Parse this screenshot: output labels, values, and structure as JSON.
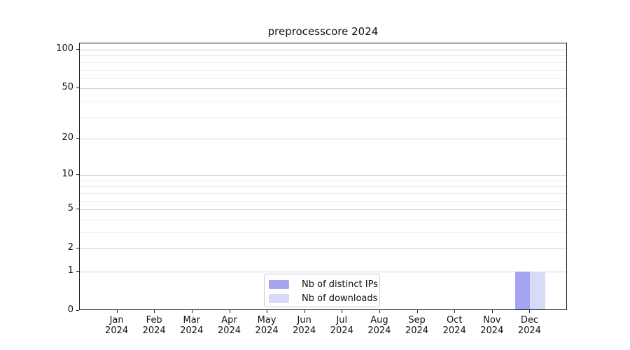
{
  "title": "preprocesscore 2024",
  "chart_data": {
    "type": "bar",
    "title": "preprocesscore 2024",
    "categories": [
      {
        "month": "Jan",
        "year": "2024"
      },
      {
        "month": "Feb",
        "year": "2024"
      },
      {
        "month": "Mar",
        "year": "2024"
      },
      {
        "month": "Apr",
        "year": "2024"
      },
      {
        "month": "May",
        "year": "2024"
      },
      {
        "month": "Jun",
        "year": "2024"
      },
      {
        "month": "Jul",
        "year": "2024"
      },
      {
        "month": "Aug",
        "year": "2024"
      },
      {
        "month": "Sep",
        "year": "2024"
      },
      {
        "month": "Oct",
        "year": "2024"
      },
      {
        "month": "Nov",
        "year": "2024"
      },
      {
        "month": "Dec",
        "year": "2024"
      }
    ],
    "series": [
      {
        "name": "Nb of distinct IPs",
        "color": "#a4a4f0",
        "values": [
          0,
          0,
          0,
          0,
          0,
          0,
          0,
          0,
          0,
          0,
          0,
          1
        ]
      },
      {
        "name": "Nb of downloads",
        "color": "#d9d9f8",
        "values": [
          0,
          0,
          0,
          0,
          0,
          0,
          0,
          0,
          0,
          0,
          0,
          1
        ]
      }
    ],
    "xlabel": "",
    "ylabel": "",
    "yscale": "log1p",
    "ylim": [
      0,
      113
    ],
    "yticks": [
      0,
      1,
      2,
      5,
      10,
      20,
      50,
      100
    ],
    "minor_gridlines": [
      3,
      4,
      6,
      7,
      8,
      9,
      30,
      40,
      60,
      70,
      80,
      90
    ],
    "grid": "horizontal, major and minor",
    "legend_position": "lower center"
  }
}
